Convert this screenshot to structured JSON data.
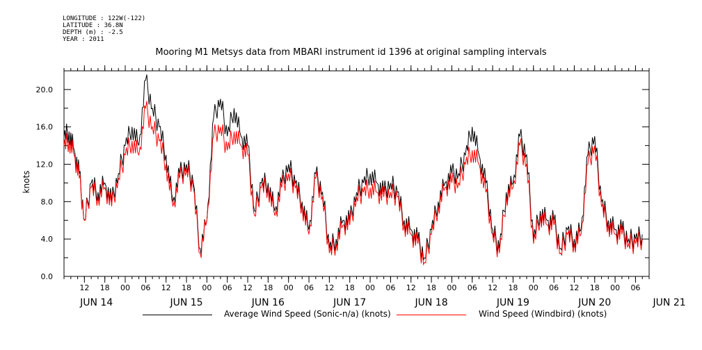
{
  "header": {
    "longitude": "LONGITUDE : 122W(-122)",
    "latitude": "LATITUDE : 36.8N",
    "depth": "DEPTH (m) : -2.5",
    "year": "YEAR : 2011"
  },
  "chart_data": {
    "type": "line",
    "title": "Mooring M1 Metsys data from MBARI instrument id 1396 at original sampling intervals",
    "ylabel": "knots",
    "xlabel": "",
    "ylim": [
      0,
      22
    ],
    "yticks": [
      "0.0",
      "4.0",
      "8.0",
      "12.0",
      "16.0",
      "20.0"
    ],
    "xlim_hours": [
      0,
      172
    ],
    "hour_ticks": [
      "12",
      "18",
      "00",
      "06",
      "12",
      "18",
      "00",
      "06",
      "12",
      "18",
      "00",
      "06",
      "12",
      "18",
      "00",
      "06",
      "12",
      "18",
      "00",
      "06",
      "12",
      "18",
      "00",
      "06",
      "12",
      "18",
      "00",
      "06"
    ],
    "day_labels": [
      "JUN 14",
      "JUN 15",
      "JUN 16",
      "JUN 17",
      "JUN 18",
      "JUN 19",
      "JUN 20",
      "JUN 21"
    ],
    "grid": false,
    "legend_position": "bottom",
    "series": [
      {
        "name": "Average Wind Speed (Sonic-n/a) (knots)",
        "color": "#000000",
        "x": [
          0,
          1.5,
          3,
          4.5,
          6,
          8,
          10,
          12,
          14,
          16,
          18,
          20,
          22,
          24,
          26,
          28,
          30,
          32,
          34,
          36,
          38,
          40,
          42,
          44,
          46,
          48,
          50,
          52,
          54,
          56,
          58,
          60,
          62,
          64,
          66,
          68,
          70,
          72,
          74,
          76,
          78,
          80,
          82,
          84,
          86,
          88,
          90,
          92,
          94,
          96,
          98,
          100,
          102,
          104,
          106,
          108,
          110,
          112,
          114,
          116,
          118,
          120,
          122,
          124,
          126,
          128,
          130,
          132,
          134,
          136,
          138,
          140,
          142,
          144,
          146,
          148,
          150,
          152,
          154,
          156,
          158,
          160,
          162,
          164,
          166,
          168,
          170
        ],
        "values": [
          15,
          15.5,
          13.5,
          11,
          6,
          10,
          9,
          10,
          8,
          11,
          14,
          16,
          14,
          21,
          18,
          16,
          13,
          8,
          11,
          12,
          10,
          3,
          6,
          17,
          19,
          15,
          18,
          15,
          14,
          7,
          10,
          10,
          7,
          10,
          12,
          10,
          8,
          5,
          11,
          9,
          3,
          4,
          6,
          6,
          9,
          10,
          11,
          10,
          9,
          10,
          9,
          6,
          5,
          4,
          2,
          5,
          8,
          10,
          11,
          11,
          13,
          16,
          13,
          10,
          5,
          3,
          9,
          10,
          15,
          13,
          4,
          7,
          6,
          6,
          3,
          5,
          4,
          5,
          13,
          15,
          8,
          6,
          5,
          5,
          4,
          4,
          4.5
        ]
      },
      {
        "name": "Wind Speed (Windbird) (knots)",
        "color": "#ff0000",
        "x": [
          0,
          1.5,
          3,
          4.5,
          6,
          8,
          10,
          12,
          14,
          16,
          18,
          20,
          22,
          24,
          26,
          28,
          30,
          32,
          34,
          36,
          38,
          40,
          42,
          44,
          46,
          48,
          50,
          52,
          54,
          56,
          58,
          60,
          62,
          64,
          66,
          68,
          70,
          72,
          74,
          76,
          78,
          80,
          82,
          84,
          86,
          88,
          90,
          92,
          94,
          96,
          98,
          100,
          102,
          104,
          106,
          108,
          110,
          112,
          114,
          116,
          118,
          120,
          122,
          124,
          126,
          128,
          130,
          132,
          134,
          136,
          138,
          140,
          142,
          144,
          146,
          148,
          150,
          152,
          154,
          156,
          158,
          160,
          162,
          164,
          166,
          168,
          170
        ],
        "values": [
          14,
          14.5,
          13,
          10.5,
          6,
          9.5,
          8.5,
          9.5,
          7.5,
          10.5,
          13,
          14.5,
          13,
          18,
          16,
          14.5,
          12,
          7.5,
          10.5,
          11.5,
          9.5,
          2.5,
          6,
          15,
          16,
          13.5,
          15.5,
          14,
          13,
          6.5,
          9.5,
          9.5,
          6.5,
          9.5,
          11,
          9.5,
          7.5,
          4.5,
          10.5,
          8.5,
          2.5,
          3.5,
          5.5,
          5.5,
          8.5,
          9,
          9.5,
          9,
          8.5,
          9,
          8.5,
          5.5,
          4.5,
          3.5,
          1.5,
          4.5,
          7.5,
          9.5,
          10,
          10,
          12,
          13.5,
          12,
          9,
          4.5,
          2.5,
          8.5,
          9.5,
          14,
          12,
          3.5,
          6.5,
          5.5,
          5.5,
          2.5,
          4.5,
          3.5,
          4.5,
          12,
          14,
          7.5,
          5.5,
          4.5,
          4.5,
          3.5,
          3.5,
          4
        ]
      }
    ]
  }
}
